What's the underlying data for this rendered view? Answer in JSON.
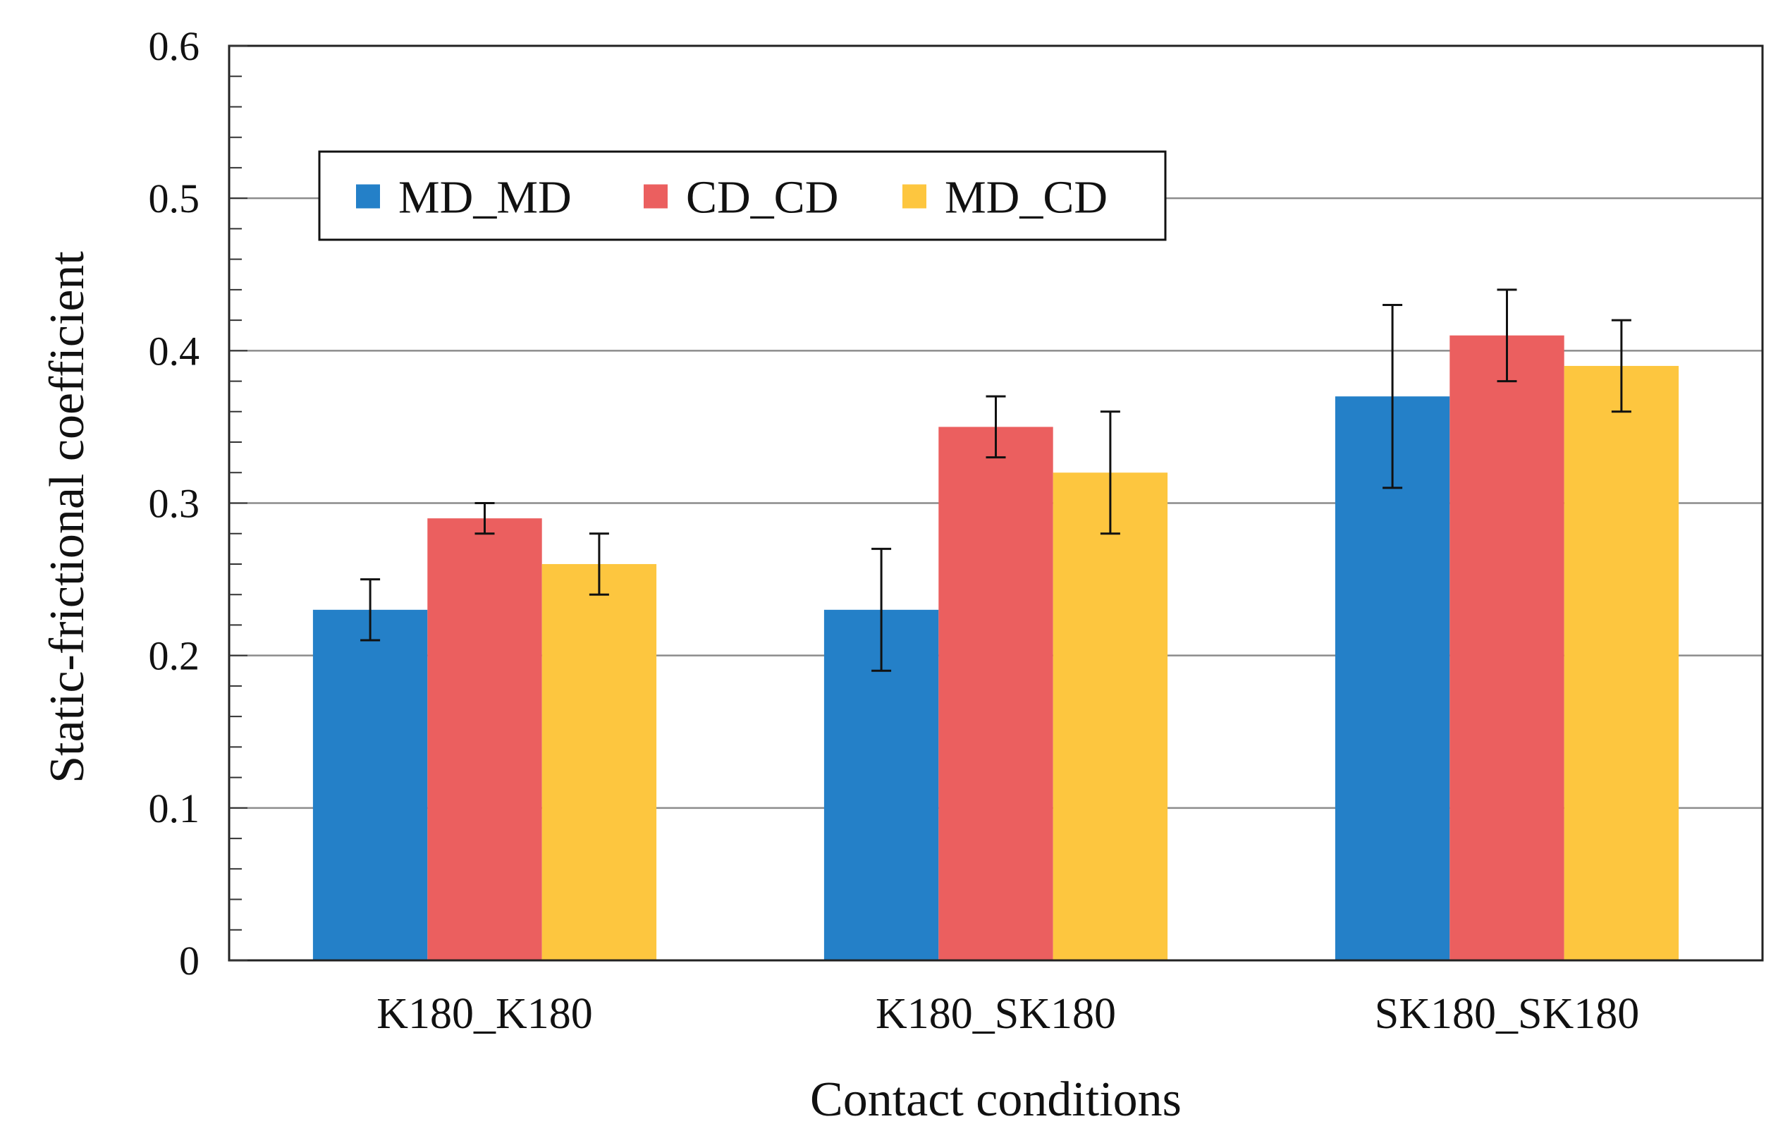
{
  "chart_data": {
    "type": "bar",
    "title": "",
    "xlabel": "Contact conditions",
    "ylabel": "Static-frictional coefficient",
    "ylim": [
      0,
      0.6
    ],
    "yticks": [
      0,
      0.1,
      0.2,
      0.3,
      0.4,
      0.5,
      0.6
    ],
    "ytick_labels": [
      "0",
      "0.1",
      "0.2",
      "0.3",
      "0.4",
      "0.5",
      "0.6"
    ],
    "grid": true,
    "legend_position": "upper-left",
    "categories": [
      "K180_K180",
      "K180_SK180",
      "SK180_SK180"
    ],
    "series": [
      {
        "name": "MD_MD",
        "color": "#2480c8",
        "values": [
          0.23,
          0.23,
          0.37
        ],
        "error_low": [
          0.21,
          0.19,
          0.31
        ],
        "error_high": [
          0.25,
          0.27,
          0.43
        ]
      },
      {
        "name": "CD_CD",
        "color": "#eb5f5f",
        "values": [
          0.29,
          0.35,
          0.41
        ],
        "error_low": [
          0.28,
          0.33,
          0.38
        ],
        "error_high": [
          0.3,
          0.37,
          0.44
        ]
      },
      {
        "name": "MD_CD",
        "color": "#fdc63f",
        "values": [
          0.26,
          0.32,
          0.39
        ],
        "error_low": [
          0.24,
          0.28,
          0.36
        ],
        "error_high": [
          0.28,
          0.36,
          0.42
        ]
      }
    ]
  }
}
